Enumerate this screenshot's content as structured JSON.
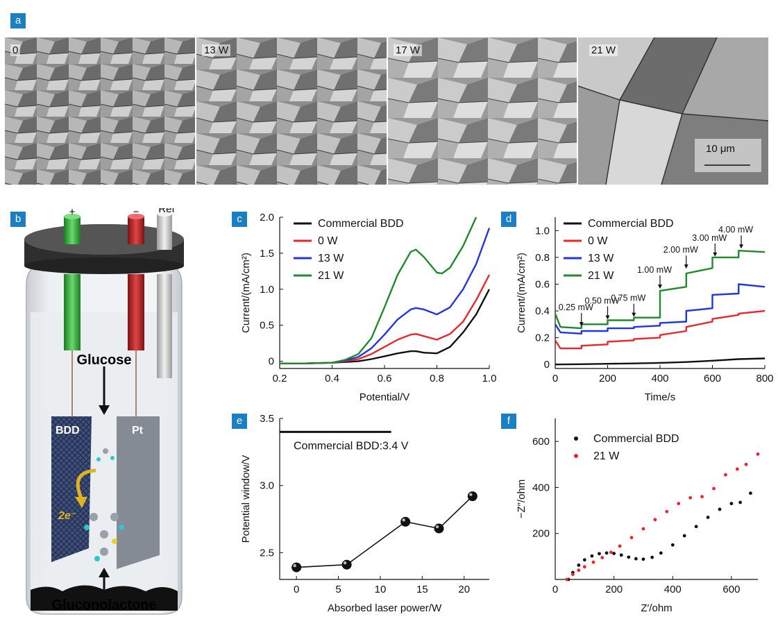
{
  "panels": {
    "a": {
      "tag": "a",
      "images": [
        {
          "label": "0"
        },
        {
          "label": "13 W"
        },
        {
          "label": "17 W"
        },
        {
          "label": "21 W"
        }
      ],
      "scalebar": "10 μm"
    },
    "b": {
      "tag": "b",
      "terminals": [
        "+",
        "−",
        "Ref"
      ],
      "glucose": "Glucose",
      "gluconolactone": "Gluconolactone",
      "bdd": "BDD",
      "pt": "Pt",
      "electrons": "2e⁻"
    },
    "c": {
      "tag": "c"
    },
    "d": {
      "tag": "d"
    },
    "e": {
      "tag": "e"
    },
    "f": {
      "tag": "f"
    }
  },
  "colors": {
    "tag_bg": "#1a7fc3",
    "black": "#111111",
    "red": "#e8262b",
    "blue": "#2233e0",
    "green": "#1f8a2a"
  },
  "chart_data": [
    {
      "panel": "c",
      "type": "line",
      "xlabel": "Potential/V",
      "ylabel": "Current/(mA/cm²)",
      "xlim": [
        0.2,
        1.0
      ],
      "ylim": [
        -0.1,
        2.0
      ],
      "xticks": [
        "0.2",
        "0.4",
        "0.6",
        "0.8",
        "1.0"
      ],
      "yticks": [
        "0",
        "0.5",
        "1.0",
        "1.5",
        "2.0"
      ],
      "legend": "top-left",
      "series": [
        {
          "name": "Commercial BDD",
          "color": "#111111",
          "x": [
            0.2,
            0.3,
            0.4,
            0.45,
            0.5,
            0.55,
            0.6,
            0.65,
            0.7,
            0.72,
            0.75,
            0.8,
            0.85,
            0.9,
            0.95,
            1.0
          ],
          "y": [
            -0.03,
            -0.03,
            -0.02,
            -0.01,
            0.0,
            0.03,
            0.07,
            0.11,
            0.14,
            0.14,
            0.12,
            0.11,
            0.2,
            0.4,
            0.65,
            1.0
          ]
        },
        {
          "name": "0 W",
          "color": "#e8262b",
          "x": [
            0.2,
            0.3,
            0.4,
            0.45,
            0.5,
            0.55,
            0.6,
            0.65,
            0.7,
            0.72,
            0.75,
            0.8,
            0.85,
            0.9,
            0.95,
            1.0
          ],
          "y": [
            -0.03,
            -0.03,
            -0.02,
            0.0,
            0.03,
            0.1,
            0.2,
            0.3,
            0.37,
            0.38,
            0.35,
            0.3,
            0.38,
            0.55,
            0.85,
            1.2
          ]
        },
        {
          "name": "13 W",
          "color": "#2233e0",
          "x": [
            0.2,
            0.3,
            0.4,
            0.45,
            0.5,
            0.55,
            0.6,
            0.65,
            0.7,
            0.72,
            0.75,
            0.8,
            0.85,
            0.9,
            0.95,
            1.0
          ],
          "y": [
            -0.03,
            -0.03,
            -0.02,
            0.01,
            0.06,
            0.18,
            0.37,
            0.58,
            0.72,
            0.74,
            0.72,
            0.65,
            0.75,
            1.0,
            1.35,
            1.85
          ]
        },
        {
          "name": "21 W",
          "color": "#1f8a2a",
          "x": [
            0.2,
            0.3,
            0.4,
            0.45,
            0.5,
            0.55,
            0.6,
            0.65,
            0.7,
            0.72,
            0.75,
            0.8,
            0.82,
            0.85,
            0.9,
            0.95
          ],
          "y": [
            -0.03,
            -0.03,
            -0.02,
            0.02,
            0.1,
            0.32,
            0.75,
            1.2,
            1.52,
            1.55,
            1.45,
            1.23,
            1.22,
            1.3,
            1.6,
            2.0
          ]
        }
      ]
    },
    {
      "panel": "d",
      "type": "line",
      "xlabel": "Time/s",
      "ylabel": "Current/(mA/cm²)",
      "xlim": [
        0,
        800
      ],
      "ylim": [
        -0.03,
        1.1
      ],
      "xticks": [
        "0",
        "200",
        "400",
        "600",
        "800"
      ],
      "yticks": [
        "0",
        "0.2",
        "0.4",
        "0.6",
        "0.8",
        "1.0"
      ],
      "legend": "top-left",
      "annotations": [
        {
          "text": "0.25 mW",
          "x": 100,
          "y": 0.27
        },
        {
          "text": "0.50 mW",
          "x": 200,
          "y": 0.32
        },
        {
          "text": "0.75 mW",
          "x": 300,
          "y": 0.34
        },
        {
          "text": "1.00 mW",
          "x": 400,
          "y": 0.55
        },
        {
          "text": "2.00 mW",
          "x": 500,
          "y": 0.7
        },
        {
          "text": "3.00 mW",
          "x": 610,
          "y": 0.79
        },
        {
          "text": "4.00 mW",
          "x": 710,
          "y": 0.85
        }
      ],
      "series": [
        {
          "name": "Commercial BDD",
          "color": "#111111",
          "x": [
            0,
            100,
            200,
            300,
            400,
            500,
            600,
            700,
            800
          ],
          "y": [
            0.0,
            0.002,
            0.005,
            0.008,
            0.012,
            0.018,
            0.028,
            0.04,
            0.045
          ]
        },
        {
          "name": "0 W",
          "color": "#e8262b",
          "x": [
            0,
            20,
            100,
            100,
            200,
            200,
            300,
            300,
            400,
            400,
            500,
            500,
            600,
            600,
            700,
            700,
            800
          ],
          "y": [
            0.18,
            0.12,
            0.12,
            0.14,
            0.15,
            0.17,
            0.18,
            0.19,
            0.2,
            0.22,
            0.25,
            0.28,
            0.32,
            0.34,
            0.37,
            0.38,
            0.4
          ]
        },
        {
          "name": "13 W",
          "color": "#2233e0",
          "x": [
            0,
            20,
            100,
            100,
            200,
            200,
            300,
            300,
            400,
            400,
            500,
            500,
            600,
            600,
            700,
            700,
            800
          ],
          "y": [
            0.3,
            0.24,
            0.23,
            0.25,
            0.25,
            0.27,
            0.27,
            0.28,
            0.29,
            0.31,
            0.32,
            0.4,
            0.42,
            0.52,
            0.53,
            0.6,
            0.58
          ]
        },
        {
          "name": "21 W",
          "color": "#1f8a2a",
          "x": [
            0,
            20,
            100,
            100,
            200,
            200,
            300,
            300,
            400,
            400,
            500,
            500,
            600,
            600,
            700,
            700,
            800
          ],
          "y": [
            0.38,
            0.28,
            0.27,
            0.3,
            0.3,
            0.33,
            0.33,
            0.35,
            0.35,
            0.55,
            0.58,
            0.68,
            0.72,
            0.8,
            0.8,
            0.85,
            0.84
          ]
        }
      ]
    },
    {
      "panel": "e",
      "type": "line",
      "xlabel": "Absorbed laser power/W",
      "ylabel": "Potential window/V",
      "xlim": [
        -2,
        23
      ],
      "ylim": [
        2.3,
        3.5
      ],
      "xticks": [
        "0",
        "5",
        "10",
        "15",
        "20"
      ],
      "yticks": [
        "2.5",
        "3.0",
        "3.5"
      ],
      "reference": {
        "label": "Commercial BDD:3.4 V",
        "y": 3.4
      },
      "series": [
        {
          "color": "#111111",
          "x": [
            0,
            6,
            13,
            17,
            21
          ],
          "y": [
            2.39,
            2.41,
            2.73,
            2.68,
            2.92
          ]
        }
      ]
    },
    {
      "panel": "f",
      "type": "scatter",
      "xlabel": "Z′/ohm",
      "ylabel": "−Z″/ohm",
      "xlim": [
        0,
        690
      ],
      "ylim": [
        0,
        700
      ],
      "xticks": [
        "0",
        "200",
        "400",
        "600"
      ],
      "yticks": [
        "200",
        "400",
        "600"
      ],
      "legend": "top-left",
      "series": [
        {
          "name": "Commercial BDD",
          "color": "#111111",
          "x": [
            45,
            60,
            80,
            100,
            125,
            150,
            175,
            200,
            225,
            250,
            275,
            300,
            330,
            360,
            400,
            440,
            480,
            520,
            560,
            600,
            630,
            665
          ],
          "y": [
            0,
            30,
            62,
            85,
            102,
            112,
            115,
            113,
            106,
            97,
            90,
            88,
            96,
            115,
            150,
            190,
            230,
            270,
            305,
            330,
            335,
            375
          ]
        },
        {
          "name": "21 W",
          "color": "#e8262b",
          "x": [
            40,
            60,
            80,
            100,
            130,
            160,
            190,
            220,
            260,
            300,
            340,
            380,
            420,
            460,
            500,
            540,
            580,
            620,
            650,
            690
          ],
          "y": [
            0,
            22,
            40,
            55,
            75,
            95,
            118,
            145,
            182,
            220,
            260,
            295,
            330,
            355,
            360,
            395,
            455,
            480,
            500,
            545
          ]
        }
      ]
    }
  ]
}
